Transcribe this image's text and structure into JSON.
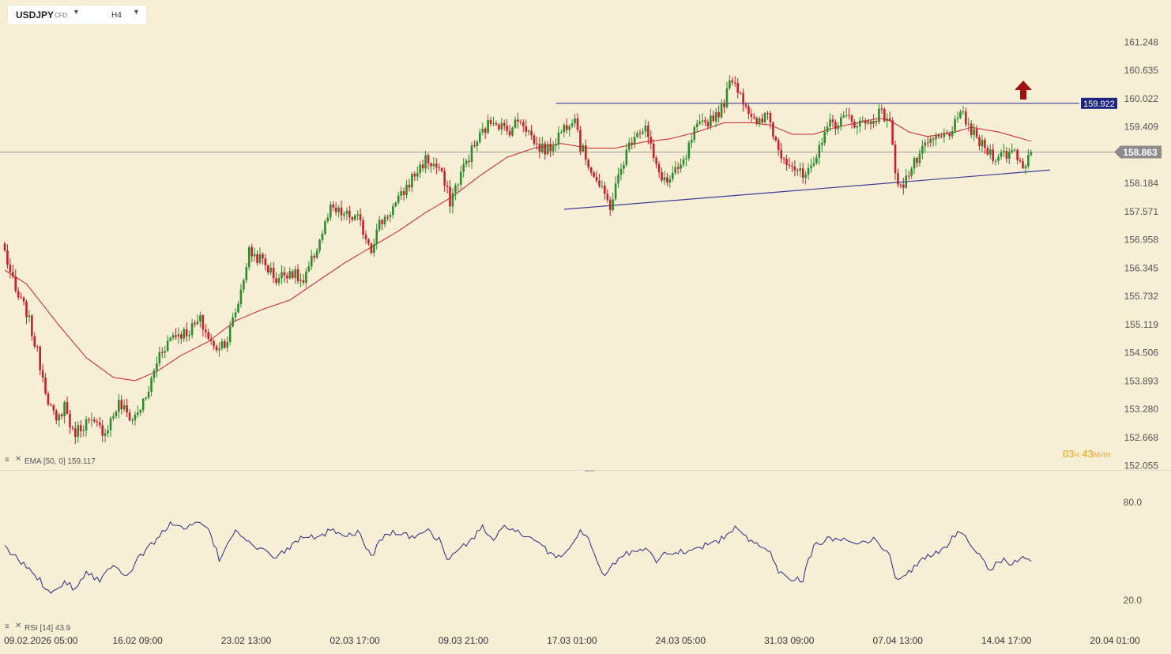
{
  "header": {
    "symbol": "USDJPY",
    "instrument_type": "CFD",
    "timeframe": "H4"
  },
  "indicators": {
    "ema_label": "EMA [50, 0] 159.117",
    "rsi_label": "RSI [14] 43.9"
  },
  "timer": {
    "hours": "03",
    "hours_unit": "ч",
    "minutes": "43",
    "minutes_unit": "мин"
  },
  "colors": {
    "background": "#f7eed6",
    "bull": "#2e8b2e",
    "bear": "#c8202a",
    "ema": "#c8202a",
    "trendline": "#3a3a96",
    "rsi": "#2a2a80",
    "price_tag": "#8c8c8c",
    "resistance_tag": "#1c2680",
    "arrow": "#a01010"
  },
  "chart_data": [
    {
      "type": "candlestick",
      "instrument": "USDJPY",
      "timeframe": "H4",
      "y_ticks": [
        161.248,
        160.635,
        160.022,
        159.409,
        158.184,
        157.571,
        156.958,
        156.345,
        155.732,
        155.119,
        154.506,
        153.893,
        153.28,
        152.668,
        152.055
      ],
      "ylim": [
        152.055,
        161.248
      ],
      "x_ticks": [
        "09.02.2026 05:00",
        "16.02 09:00",
        "23.02 13:00",
        "02.03 17:00",
        "09.03 21:00",
        "17.03 01:00",
        "24.03 05:00",
        "31.03 09:00",
        "07.04 13:00",
        "14.04 17:00",
        "20.04 01:00"
      ],
      "x_tick_index": [
        0,
        40,
        80,
        120,
        160,
        200,
        240,
        280,
        320,
        360,
        400
      ],
      "last_price": 158.863,
      "resistance_level": 159.922,
      "ema": {
        "period": 50,
        "shift": 0,
        "last_value": 159.117
      },
      "support_trendline": {
        "start": {
          "index": 206,
          "price": 157.62
        },
        "end": {
          "index": 378,
          "price": 158.44
        }
      },
      "signal": "up-arrow",
      "close_path_anchors": [
        [
          0,
          156.7
        ],
        [
          4,
          155.8
        ],
        [
          8,
          155.4
        ],
        [
          12,
          154.5
        ],
        [
          16,
          153.5
        ],
        [
          19,
          152.95
        ],
        [
          22,
          153.4
        ],
        [
          25,
          152.75
        ],
        [
          30,
          153.0
        ],
        [
          34,
          152.9
        ],
        [
          37,
          152.8
        ],
        [
          42,
          153.4
        ],
        [
          47,
          153.05
        ],
        [
          52,
          153.5
        ],
        [
          57,
          154.5
        ],
        [
          62,
          154.9
        ],
        [
          67,
          154.95
        ],
        [
          72,
          155.2
        ],
        [
          77,
          154.6
        ],
        [
          82,
          154.8
        ],
        [
          86,
          155.6
        ],
        [
          90,
          156.7
        ],
        [
          95,
          156.5
        ],
        [
          100,
          156.1
        ],
        [
          105,
          156.3
        ],
        [
          110,
          156.0
        ],
        [
          115,
          156.8
        ],
        [
          120,
          157.6
        ],
        [
          125,
          157.5
        ],
        [
          130,
          157.4
        ],
        [
          135,
          156.8
        ],
        [
          138,
          157.3
        ],
        [
          145,
          157.8
        ],
        [
          150,
          158.3
        ],
        [
          155,
          158.7
        ],
        [
          160,
          158.5
        ],
        [
          164,
          157.8
        ],
        [
          168,
          158.4
        ],
        [
          172,
          158.9
        ],
        [
          176,
          159.3
        ],
        [
          180,
          159.6
        ],
        [
          185,
          159.3
        ],
        [
          190,
          159.6
        ],
        [
          196,
          159.0
        ],
        [
          200,
          158.9
        ],
        [
          206,
          159.4
        ],
        [
          210,
          159.7
        ],
        [
          212,
          159.0
        ],
        [
          220,
          158.0
        ],
        [
          223,
          157.7
        ],
        [
          228,
          158.7
        ],
        [
          232,
          159.3
        ],
        [
          236,
          159.4
        ],
        [
          240,
          158.5
        ],
        [
          244,
          158.2
        ],
        [
          250,
          158.6
        ],
        [
          254,
          159.3
        ],
        [
          260,
          159.6
        ],
        [
          264,
          159.8
        ],
        [
          268,
          160.5
        ],
        [
          273,
          159.9
        ],
        [
          277,
          159.4
        ],
        [
          281,
          159.7
        ],
        [
          285,
          158.9
        ],
        [
          290,
          158.6
        ],
        [
          294,
          158.3
        ],
        [
          298,
          158.5
        ],
        [
          302,
          159.4
        ],
        [
          306,
          159.5
        ],
        [
          310,
          159.6
        ],
        [
          314,
          159.5
        ],
        [
          318,
          159.5
        ],
        [
          322,
          159.7
        ],
        [
          326,
          159.6
        ],
        [
          328,
          158.3
        ],
        [
          331,
          158.2
        ],
        [
          336,
          158.7
        ],
        [
          341,
          159.1
        ],
        [
          346,
          159.2
        ],
        [
          351,
          159.5
        ],
        [
          353,
          159.7
        ],
        [
          356,
          159.3
        ],
        [
          360,
          159.0
        ],
        [
          364,
          158.8
        ],
        [
          368,
          158.8
        ],
        [
          372,
          158.9
        ],
        [
          375,
          158.55
        ],
        [
          378,
          158.86
        ]
      ],
      "ema_path_anchors": [
        [
          0,
          156.3
        ],
        [
          8,
          156.0
        ],
        [
          20,
          155.1
        ],
        [
          30,
          154.4
        ],
        [
          40,
          153.97
        ],
        [
          48,
          153.9
        ],
        [
          56,
          154.1
        ],
        [
          65,
          154.45
        ],
        [
          75,
          154.75
        ],
        [
          85,
          155.2
        ],
        [
          95,
          155.45
        ],
        [
          105,
          155.65
        ],
        [
          115,
          156.05
        ],
        [
          125,
          156.45
        ],
        [
          135,
          156.8
        ],
        [
          145,
          157.15
        ],
        [
          155,
          157.55
        ],
        [
          165,
          157.9
        ],
        [
          175,
          158.35
        ],
        [
          185,
          158.75
        ],
        [
          195,
          158.95
        ],
        [
          205,
          159.05
        ],
        [
          215,
          158.95
        ],
        [
          225,
          158.95
        ],
        [
          235,
          159.08
        ],
        [
          245,
          159.15
        ],
        [
          255,
          159.3
        ],
        [
          265,
          159.5
        ],
        [
          275,
          159.5
        ],
        [
          282,
          159.45
        ],
        [
          290,
          159.25
        ],
        [
          298,
          159.25
        ],
        [
          306,
          159.4
        ],
        [
          314,
          159.5
        ],
        [
          322,
          159.6
        ],
        [
          326,
          159.55
        ],
        [
          333,
          159.3
        ],
        [
          340,
          159.2
        ],
        [
          350,
          159.3
        ],
        [
          356,
          159.4
        ],
        [
          366,
          159.3
        ],
        [
          378,
          159.1
        ]
      ]
    },
    {
      "type": "line",
      "name": "RSI [14]",
      "period": 14,
      "last_value": 43.9,
      "y_ticks": [
        80.0,
        20.0
      ],
      "ylim": [
        20,
        80
      ],
      "anchors": [
        [
          0,
          52
        ],
        [
          3,
          48
        ],
        [
          6,
          43
        ],
        [
          10,
          38
        ],
        [
          14,
          30
        ],
        [
          18,
          25
        ],
        [
          22,
          32
        ],
        [
          26,
          27
        ],
        [
          30,
          38
        ],
        [
          35,
          32
        ],
        [
          40,
          43
        ],
        [
          45,
          35
        ],
        [
          50,
          47
        ],
        [
          56,
          58
        ],
        [
          62,
          68
        ],
        [
          66,
          63
        ],
        [
          72,
          68
        ],
        [
          76,
          60
        ],
        [
          79,
          45
        ],
        [
          85,
          64
        ],
        [
          90,
          55
        ],
        [
          95,
          50
        ],
        [
          100,
          47
        ],
        [
          105,
          52
        ],
        [
          110,
          60
        ],
        [
          115,
          57
        ],
        [
          120,
          63
        ],
        [
          125,
          58
        ],
        [
          130,
          62
        ],
        [
          135,
          47
        ],
        [
          140,
          60
        ],
        [
          145,
          62
        ],
        [
          150,
          58
        ],
        [
          155,
          64
        ],
        [
          160,
          57
        ],
        [
          163,
          45
        ],
        [
          168,
          52
        ],
        [
          172,
          57
        ],
        [
          176,
          65
        ],
        [
          180,
          57
        ],
        [
          185,
          66
        ],
        [
          190,
          60
        ],
        [
          196,
          55
        ],
        [
          200,
          50
        ],
        [
          205,
          46
        ],
        [
          212,
          62
        ],
        [
          216,
          55
        ],
        [
          220,
          35
        ],
        [
          224,
          41
        ],
        [
          228,
          48
        ],
        [
          232,
          50
        ],
        [
          236,
          53
        ],
        [
          240,
          45
        ],
        [
          244,
          49
        ],
        [
          250,
          50
        ],
        [
          256,
          53
        ],
        [
          262,
          55
        ],
        [
          270,
          65
        ],
        [
          275,
          55
        ],
        [
          281,
          52
        ],
        [
          285,
          38
        ],
        [
          288,
          34
        ],
        [
          294,
          33
        ],
        [
          298,
          54
        ],
        [
          305,
          58
        ],
        [
          310,
          57
        ],
        [
          316,
          56
        ],
        [
          321,
          57
        ],
        [
          326,
          47
        ],
        [
          328,
          34
        ],
        [
          332,
          36
        ],
        [
          336,
          42
        ],
        [
          341,
          48
        ],
        [
          345,
          50
        ],
        [
          350,
          60
        ],
        [
          353,
          61
        ],
        [
          356,
          55
        ],
        [
          360,
          46
        ],
        [
          363,
          38
        ],
        [
          366,
          44
        ],
        [
          368,
          46
        ],
        [
          371,
          41
        ],
        [
          374,
          46
        ],
        [
          378,
          45
        ]
      ]
    }
  ]
}
